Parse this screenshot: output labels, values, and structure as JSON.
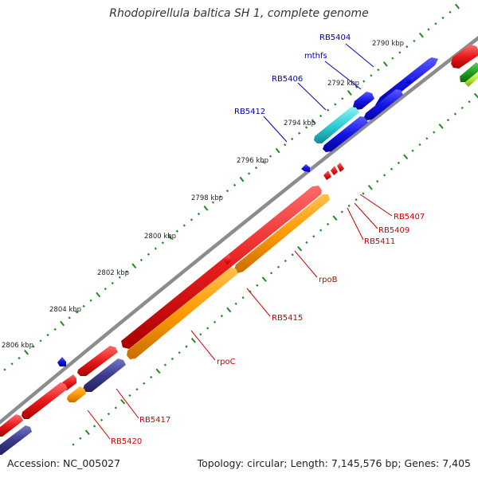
{
  "title": "Rhodopirellula baltica SH 1, complete genome",
  "footer": {
    "accession": "Accession: NC_005027",
    "summary": "Topology: circular; Length: 7,145,576 bp; Genes: 7,405"
  },
  "colors": {
    "backbone": "#8c8c8c",
    "tick": "#1f8a1f",
    "forward_red": "#e8202a",
    "reverse_orange": "#ff9a00",
    "blue": "#1a1ae8",
    "cyan": "#2ecfd6",
    "slate": "#3b3b8f",
    "green": "#22a022",
    "lime": "#a6e040",
    "label_red": "#cc0000",
    "label_blue": "#0000b0",
    "scale_text": "#222222"
  },
  "scale_marks": [
    "2790 kbp",
    "2792 kbp",
    "2794 kbp",
    "2796 kbp",
    "2798 kbp",
    "2800 kbp",
    "2802 kbp",
    "2804 kbp",
    "2806 kbp"
  ],
  "gene_labels": [
    {
      "text": "RB5404",
      "color": "blue"
    },
    {
      "text": "mthfs",
      "color": "blue"
    },
    {
      "text": "RB5406",
      "color": "blue"
    },
    {
      "text": "RB5412",
      "color": "blue"
    },
    {
      "text": "RB5407",
      "color": "red"
    },
    {
      "text": "RB5409",
      "color": "red"
    },
    {
      "text": "RB5411",
      "color": "red"
    },
    {
      "text": "rpoB",
      "color": "red"
    },
    {
      "text": "RB5415",
      "color": "red"
    },
    {
      "text": "rpoC",
      "color": "red"
    },
    {
      "text": "RB5417",
      "color": "red"
    },
    {
      "text": "RB5420",
      "color": "red"
    }
  ]
}
